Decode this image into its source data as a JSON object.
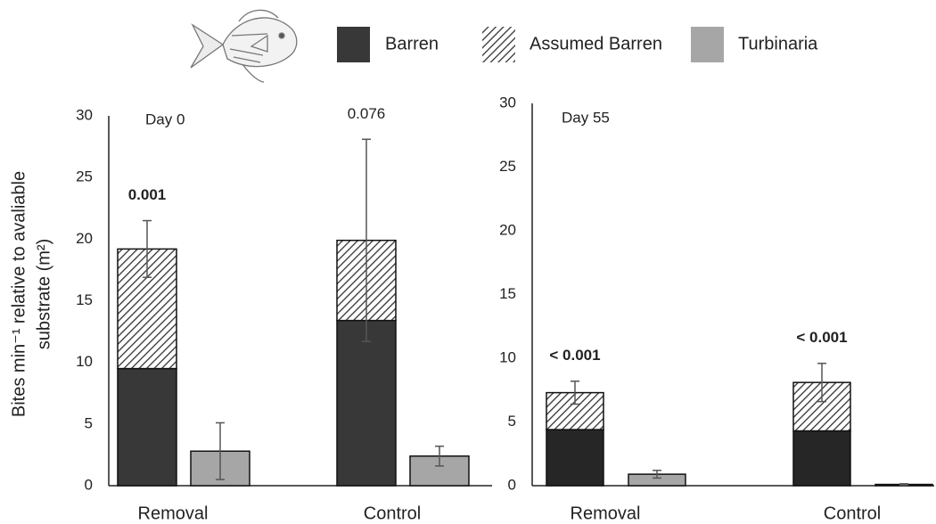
{
  "chart_data": [
    {
      "type": "bar",
      "annotation": "Day 0",
      "ylabel": [
        "Bites min⁻¹ relative to avaliable",
        "substrate (m²)"
      ],
      "categories": [
        "Removal",
        "Control"
      ],
      "series": [
        {
          "name": "Barren",
          "color": "#383838",
          "group": 0,
          "values": [
            9.5,
            13.4
          ]
        },
        {
          "name": "Assumed Barren",
          "color": "#333333",
          "hatch": true,
          "group": 0,
          "values": [
            9.7,
            6.5
          ],
          "errors": [
            2.3,
            8.2
          ]
        },
        {
          "name": "Turbinaria",
          "color": "#a6a6a6",
          "group": 1,
          "values": [
            2.8,
            2.4
          ],
          "errors": [
            2.3,
            0.8
          ]
        }
      ],
      "p_values": [
        "0.001",
        "0.076"
      ],
      "p_bold": [
        true,
        false
      ],
      "ylim": [
        0,
        30
      ],
      "yticks": [
        0,
        5,
        10,
        15,
        20,
        25,
        30
      ]
    },
    {
      "type": "bar",
      "annotation": "Day 55",
      "categories": [
        "Removal",
        "Control"
      ],
      "series": [
        {
          "name": "Barren",
          "color": "#262626",
          "group": 0,
          "values": [
            4.4,
            4.3
          ]
        },
        {
          "name": "Assumed Barren",
          "color": "#333333",
          "hatch": true,
          "group": 0,
          "values": [
            2.9,
            3.8
          ],
          "errors": [
            0.9,
            1.5
          ]
        },
        {
          "name": "Turbinaria",
          "color": "#a6a6a6",
          "group": 1,
          "values": [
            0.9,
            0.1
          ],
          "errors": [
            0.3,
            0.05
          ]
        }
      ],
      "p_values": [
        "< 0.001",
        "< 0.001"
      ],
      "p_bold": [
        true,
        true
      ],
      "ylim": [
        0,
        30
      ],
      "yticks": [
        0,
        5,
        10,
        15,
        20,
        25,
        30
      ]
    }
  ]
}
